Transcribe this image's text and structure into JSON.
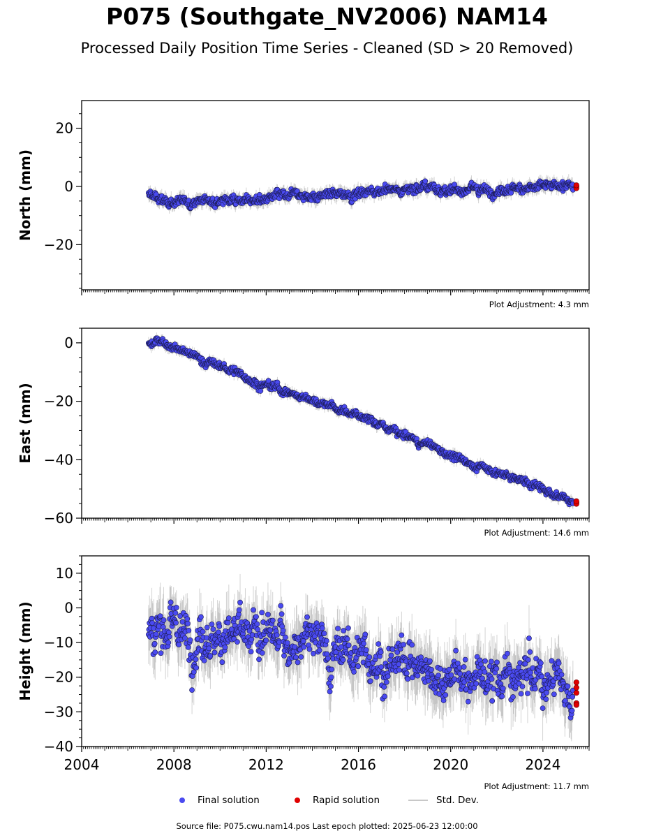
{
  "figure": {
    "title": "P075 (Southgate_NV2006) NAM14",
    "subtitle": "Processed Daily Position Time Series - Cleaned (SD > 20 Removed)",
    "footer": "Source file: P075.cwu.nam14.pos  Last epoch plotted: 2025-06-23 12:00:00"
  },
  "legend": {
    "final": "Final solution",
    "rapid": "Rapid solution",
    "std": "Std. Dev."
  },
  "colors": {
    "final_fill": "#4a4af0",
    "final_edge": "#1a1a50",
    "rapid": "#e00000",
    "std": "#808080"
  },
  "chart_data": [
    {
      "type": "scatter",
      "ylabel": "North (mm)",
      "adjustment": "Plot Adjustment: 4.3 mm",
      "xlim": [
        2004,
        2026
      ],
      "ylim": [
        -35.5,
        29.5
      ],
      "yticks": [
        20,
        0,
        -20
      ],
      "ytick_labels": [
        "20",
        "0",
        "−20"
      ],
      "series": [
        {
          "values": [
            [
              2006.9,
              -3.0
            ],
            [
              2007.5,
              -5.5
            ],
            [
              2008.5,
              -5.0
            ],
            [
              2010.0,
              -4.5
            ],
            [
              2012.0,
              -4.0
            ],
            [
              2014.0,
              -3.0
            ],
            [
              2016.0,
              -2.2
            ],
            [
              2018.0,
              -1.0
            ],
            [
              2019.0,
              0.2
            ],
            [
              2020.0,
              -1.5
            ],
            [
              2022.0,
              -1.0
            ],
            [
              2024.0,
              0.0
            ],
            [
              2025.3,
              0.0
            ]
          ]
        },
        {
          "values": [
            [
              2025.45,
              0.0
            ],
            [
              2025.45,
              -0.6
            ],
            [
              2025.45,
              0.4
            ]
          ]
        }
      ]
    },
    {
      "type": "scatter",
      "ylabel": "East (mm)",
      "adjustment": "Plot Adjustment: 14.6 mm",
      "xlim": [
        2004,
        2026
      ],
      "ylim": [
        -60,
        5
      ],
      "yticks": [
        0,
        -20,
        -40,
        -60
      ],
      "ytick_labels": [
        "0",
        "−20",
        "−40",
        "−60"
      ],
      "series": [
        {
          "values": [
            [
              2006.9,
              -0.5
            ],
            [
              2007.5,
              1.0
            ],
            [
              2008.0,
              -1.5
            ],
            [
              2010.0,
              -8.0
            ],
            [
              2012.0,
              -14.5
            ],
            [
              2014.0,
              -19.5
            ],
            [
              2016.0,
              -25.0
            ],
            [
              2018.0,
              -32.0
            ],
            [
              2020.0,
              -38.5
            ],
            [
              2022.0,
              -44.5
            ],
            [
              2024.0,
              -50.0
            ],
            [
              2025.3,
              -54.5
            ]
          ]
        },
        {
          "values": [
            [
              2025.45,
              -54.6
            ],
            [
              2025.45,
              -55.1
            ],
            [
              2025.45,
              -54.2
            ]
          ]
        }
      ]
    },
    {
      "type": "scatter",
      "ylabel": "Height (mm)",
      "adjustment": "Plot Adjustment: 11.7 mm",
      "xlim": [
        2004,
        2026
      ],
      "ylim": [
        -40,
        15
      ],
      "yticks": [
        10,
        0,
        -10,
        -20,
        -30,
        -40
      ],
      "ytick_labels": [
        "10",
        "0",
        "−10",
        "−20",
        "−30",
        "−40"
      ],
      "xticks": [
        2004,
        2008,
        2012,
        2016,
        2020,
        2024
      ],
      "xtick_labels": [
        "2004",
        "2008",
        "2012",
        "2016",
        "2020",
        "2024"
      ],
      "series": [
        {
          "values": [
            [
              2006.9,
              -6.0
            ],
            [
              2008.0,
              -7.0
            ],
            [
              2010.0,
              -9.0
            ],
            [
              2012.0,
              -9.0
            ],
            [
              2014.0,
              -10.0
            ],
            [
              2016.0,
              -14.0
            ],
            [
              2018.0,
              -16.0
            ],
            [
              2020.0,
              -19.0
            ],
            [
              2022.0,
              -20.0
            ],
            [
              2024.0,
              -22.0
            ],
            [
              2025.3,
              -23.0
            ]
          ]
        },
        {
          "values": [
            [
              2025.45,
              -21.5
            ],
            [
              2025.45,
              -23.0
            ],
            [
              2025.45,
              -24.5
            ],
            [
              2025.45,
              -27.5
            ],
            [
              2025.45,
              -28.0
            ]
          ]
        }
      ]
    }
  ]
}
